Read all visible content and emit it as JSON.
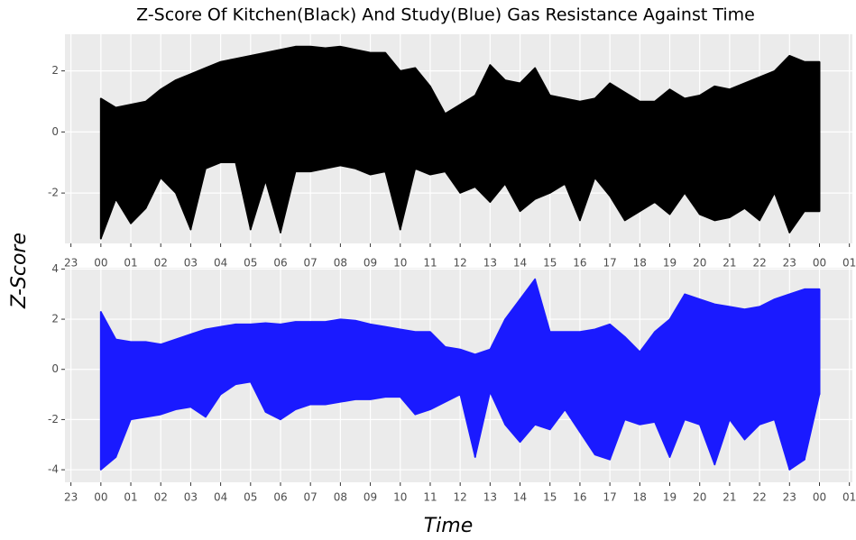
{
  "title": "Z-Score Of Kitchen(Black) And Study(Blue) Gas Resistance Against Time",
  "y_label": "Z-Score",
  "x_label": "Time",
  "chart_data": [
    {
      "type": "range",
      "color": "#000000",
      "x": [
        0,
        0.5,
        1,
        1.5,
        2,
        2.5,
        3,
        3.5,
        4,
        4.5,
        5,
        5.5,
        6,
        6.5,
        7,
        7.5,
        8,
        8.5,
        9,
        9.5,
        10,
        10.5,
        11,
        11.5,
        12,
        12.5,
        13,
        13.5,
        14,
        14.5,
        15,
        15.5,
        16,
        16.5,
        17,
        17.5,
        18,
        18.5,
        19,
        19.5,
        20,
        20.5,
        21,
        21.5,
        22,
        22.5,
        23,
        23.5,
        24
      ],
      "high": [
        1.1,
        0.8,
        0.9,
        1.0,
        1.4,
        1.7,
        1.9,
        2.1,
        2.3,
        2.4,
        2.5,
        2.6,
        2.7,
        2.8,
        2.8,
        2.75,
        2.8,
        2.7,
        2.6,
        2.6,
        2.0,
        2.1,
        1.5,
        0.6,
        0.9,
        1.2,
        2.2,
        1.7,
        1.6,
        2.1,
        1.2,
        1.1,
        1.0,
        1.1,
        1.6,
        1.3,
        1.0,
        1.0,
        1.4,
        1.1,
        1.2,
        1.5,
        1.4,
        1.6,
        1.8,
        2.0,
        2.5,
        2.3,
        2.3
      ],
      "low": [
        -3.5,
        -2.2,
        -3.0,
        -2.5,
        -1.5,
        -2.0,
        -3.2,
        -1.2,
        -1.0,
        -1.0,
        -3.2,
        -1.6,
        -3.3,
        -1.3,
        -1.3,
        -1.2,
        -1.1,
        -1.2,
        -1.4,
        -1.3,
        -3.2,
        -1.2,
        -1.4,
        -1.3,
        -2.0,
        -1.8,
        -2.3,
        -1.7,
        -2.6,
        -2.2,
        -2.0,
        -1.7,
        -2.9,
        -1.5,
        -2.1,
        -2.9,
        -2.6,
        -2.3,
        -2.7,
        -2.0,
        -2.7,
        -2.9,
        -2.8,
        -2.5,
        -2.9,
        -2.0,
        -3.3,
        -2.6,
        -2.6
      ],
      "xlim": [
        -1.2,
        25.1
      ],
      "xticks": [
        {
          "value": -1,
          "label": "23"
        },
        {
          "value": 0,
          "label": "00"
        },
        {
          "value": 1,
          "label": "01"
        },
        {
          "value": 2,
          "label": "02"
        },
        {
          "value": 3,
          "label": "03"
        },
        {
          "value": 4,
          "label": "04"
        },
        {
          "value": 5,
          "label": "05"
        },
        {
          "value": 6,
          "label": "06"
        },
        {
          "value": 7,
          "label": "07"
        },
        {
          "value": 8,
          "label": "08"
        },
        {
          "value": 9,
          "label": "09"
        },
        {
          "value": 10,
          "label": "10"
        },
        {
          "value": 11,
          "label": "11"
        },
        {
          "value": 12,
          "label": "12"
        },
        {
          "value": 13,
          "label": "13"
        },
        {
          "value": 14,
          "label": "14"
        },
        {
          "value": 15,
          "label": "15"
        },
        {
          "value": 16,
          "label": "16"
        },
        {
          "value": 17,
          "label": "17"
        },
        {
          "value": 18,
          "label": "18"
        },
        {
          "value": 19,
          "label": "19"
        },
        {
          "value": 20,
          "label": "20"
        },
        {
          "value": 21,
          "label": "21"
        },
        {
          "value": 22,
          "label": "22"
        },
        {
          "value": 23,
          "label": "23"
        },
        {
          "value": 24,
          "label": "00"
        },
        {
          "value": 25,
          "label": "01"
        }
      ],
      "ylim": [
        -3.65,
        3.2
      ],
      "yticks": [
        -2,
        0,
        2
      ],
      "grid": true
    },
    {
      "type": "range",
      "color": "#1a1aff",
      "x": [
        0,
        0.5,
        1,
        1.5,
        2,
        2.5,
        3,
        3.5,
        4,
        4.5,
        5,
        5.5,
        6,
        6.5,
        7,
        7.5,
        8,
        8.5,
        9,
        9.5,
        10,
        10.5,
        11,
        11.5,
        12,
        12.5,
        13,
        13.5,
        14,
        14.5,
        15,
        15.5,
        16,
        16.5,
        17,
        17.5,
        18,
        18.5,
        19,
        19.5,
        20,
        20.5,
        21,
        21.5,
        22,
        22.5,
        23,
        23.5,
        24
      ],
      "high": [
        2.3,
        1.2,
        1.1,
        1.1,
        1.0,
        1.2,
        1.4,
        1.6,
        1.7,
        1.8,
        1.8,
        1.85,
        1.8,
        1.9,
        1.9,
        1.9,
        2.0,
        1.95,
        1.8,
        1.7,
        1.6,
        1.5,
        1.5,
        0.9,
        0.8,
        0.6,
        0.8,
        2.0,
        2.8,
        3.6,
        1.5,
        1.5,
        1.5,
        1.6,
        1.8,
        1.3,
        0.7,
        1.5,
        2.0,
        3.0,
        2.8,
        2.6,
        2.5,
        2.4,
        2.5,
        2.8,
        3.0,
        3.2,
        3.2
      ],
      "low": [
        -4.0,
        -3.5,
        -2.0,
        -1.9,
        -1.8,
        -1.6,
        -1.5,
        -1.9,
        -1.0,
        -0.6,
        -0.5,
        -1.7,
        -2.0,
        -1.6,
        -1.4,
        -1.4,
        -1.3,
        -1.2,
        -1.2,
        -1.1,
        -1.1,
        -1.8,
        -1.6,
        -1.3,
        -1.0,
        -3.5,
        -0.9,
        -2.2,
        -2.9,
        -2.2,
        -2.4,
        -1.6,
        -2.5,
        -3.4,
        -3.6,
        -2.0,
        -2.2,
        -2.1,
        -3.5,
        -2.0,
        -2.2,
        -3.8,
        -2.0,
        -2.8,
        -2.2,
        -2.0,
        -4.0,
        -3.6,
        -1.0
      ],
      "xlim": [
        -1.2,
        25.1
      ],
      "xticks": [
        {
          "value": -1,
          "label": "23"
        },
        {
          "value": 0,
          "label": "00"
        },
        {
          "value": 1,
          "label": "01"
        },
        {
          "value": 2,
          "label": "02"
        },
        {
          "value": 3,
          "label": "03"
        },
        {
          "value": 4,
          "label": "04"
        },
        {
          "value": 5,
          "label": "05"
        },
        {
          "value": 6,
          "label": "06"
        },
        {
          "value": 7,
          "label": "07"
        },
        {
          "value": 8,
          "label": "08"
        },
        {
          "value": 9,
          "label": "09"
        },
        {
          "value": 10,
          "label": "10"
        },
        {
          "value": 11,
          "label": "11"
        },
        {
          "value": 12,
          "label": "12"
        },
        {
          "value": 13,
          "label": "13"
        },
        {
          "value": 14,
          "label": "14"
        },
        {
          "value": 15,
          "label": "15"
        },
        {
          "value": 16,
          "label": "16"
        },
        {
          "value": 17,
          "label": "17"
        },
        {
          "value": 18,
          "label": "18"
        },
        {
          "value": 19,
          "label": "19"
        },
        {
          "value": 20,
          "label": "20"
        },
        {
          "value": 21,
          "label": "21"
        },
        {
          "value": 22,
          "label": "22"
        },
        {
          "value": 23,
          "label": "23"
        },
        {
          "value": 24,
          "label": "00"
        },
        {
          "value": 25,
          "label": "01"
        }
      ],
      "ylim": [
        -4.5,
        4.05
      ],
      "yticks": [
        -4,
        -2,
        0,
        2,
        4
      ],
      "grid": true
    }
  ]
}
